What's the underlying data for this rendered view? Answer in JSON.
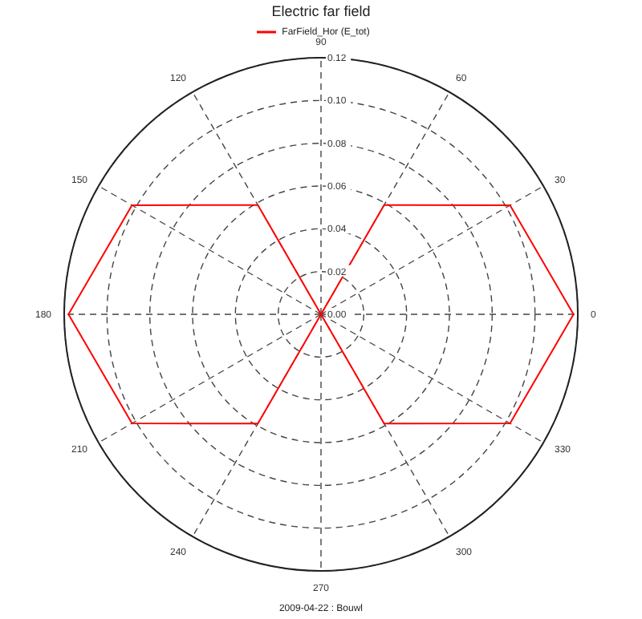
{
  "chart_data": {
    "type": "radar",
    "title": "Electric far field",
    "categories": [
      "90",
      "60",
      "30",
      "0",
      "330",
      "300",
      "270",
      "240",
      "210",
      "180",
      "150",
      "120"
    ],
    "series": [
      {
        "name": "FarField_Hor (E_tot)",
        "color": "#ff0000",
        "values": [
          0,
          0.059,
          0.102,
          0.118,
          0.102,
          0.059,
          0,
          0.059,
          0.102,
          0.118,
          0.102,
          0.059
        ]
      }
    ],
    "ylim": [
      0,
      0.12
    ],
    "yticks": [
      {
        "value": 0,
        "label": "0.00"
      },
      {
        "value": 0.02,
        "label": "0.02"
      },
      {
        "value": 0.04,
        "label": "0.04"
      },
      {
        "value": 0.06,
        "label": "0.06"
      },
      {
        "value": 0.08,
        "label": "0.08"
      },
      {
        "value": 0.1,
        "label": "0.10"
      },
      {
        "value": 0.12,
        "label": "0.12"
      }
    ],
    "grid": true,
    "legend": "top",
    "marker": "none",
    "line_style": "solid",
    "annotations": [
      "2009-04-22 : Bouwl"
    ]
  }
}
